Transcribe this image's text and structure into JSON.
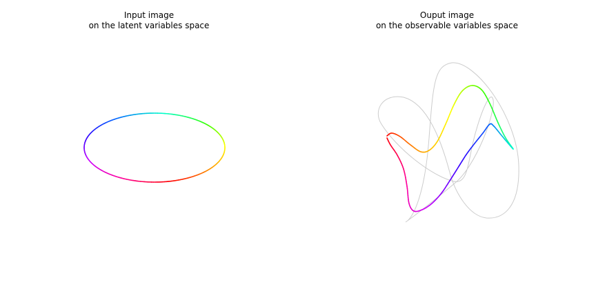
{
  "panels": {
    "left": {
      "title_line1": "Input image",
      "title_line2": "on the latent variables space"
    },
    "right": {
      "title_line1": "Ouput image",
      "title_line2": "on the observable variables space"
    }
  },
  "colors": {
    "gradient": [
      "#ff0000",
      "#ff9900",
      "#ffff00",
      "#33ff00",
      "#00ffcc",
      "#0066ff",
      "#3300ff",
      "#cc00ff",
      "#ff0099",
      "#ff0000"
    ],
    "ghost_curve": "#cccccc"
  }
}
